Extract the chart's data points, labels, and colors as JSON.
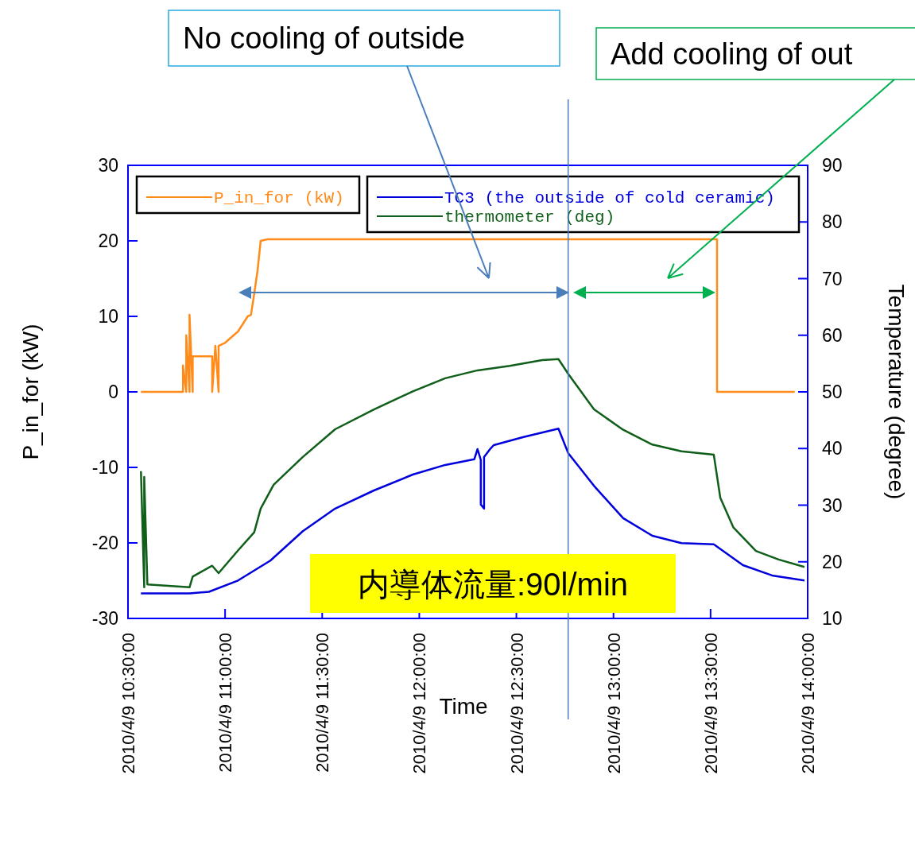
{
  "chart_data": {
    "type": "line",
    "xlabel": "Time",
    "ylabel": "P_in_for (kW)",
    "y2label": "Temperature (degree)",
    "xlim": [
      "2010-04-09T10:30",
      "2010-04-09T14:00"
    ],
    "xticks": [
      {
        "value": "2010-04-09T10:30",
        "label": "2010/4/9 10:30:00"
      },
      {
        "value": "2010-04-09T11:00",
        "label": "2010/4/9 11:00:00"
      },
      {
        "value": "2010-04-09T11:30",
        "label": "2010/4/9 11:30:00"
      },
      {
        "value": "2010-04-09T12:00",
        "label": "2010/4/9 12:00:00"
      },
      {
        "value": "2010-04-09T12:30",
        "label": "2010/4/9 12:30:00"
      },
      {
        "value": "2010-04-09T13:00",
        "label": "2010/4/9 13:00:00"
      },
      {
        "value": "2010-04-09T13:30",
        "label": "2010/4/9 13:30:00"
      },
      {
        "value": "2010-04-09T14:00",
        "label": "2010/4/9 14:00:00"
      }
    ],
    "ylim": [
      -30,
      30
    ],
    "yticks": [
      -30,
      -20,
      -10,
      0,
      10,
      20,
      30
    ],
    "y2lim": [
      10,
      90
    ],
    "y2ticks": [
      10,
      20,
      30,
      40,
      50,
      60,
      70,
      80,
      90
    ],
    "grid": false,
    "legend": "top",
    "marker": "none",
    "line_style": "solid",
    "series": [
      {
        "name": "P_in_for (kW)",
        "color": "#ff8c1a",
        "x": [
          "2010-04-09T10:34",
          "2010-04-09T10:47",
          "2010-04-09T10:47",
          "2010-04-09T10:48",
          "2010-04-09T10:48",
          "2010-04-09T10:49",
          "2010-04-09T10:49",
          "2010-04-09T10:50",
          "2010-04-09T10:50",
          "2010-04-09T10:56",
          "2010-04-09T10:56",
          "2010-04-09T10:57",
          "2010-04-09T10:58",
          "2010-04-09T10:58",
          "2010-04-09T11:00",
          "2010-04-09T11:04",
          "2010-04-09T11:07",
          "2010-04-09T11:08",
          "2010-04-09T11:09",
          "2010-04-09T11:10",
          "2010-04-09T11:11",
          "2010-04-09T11:13",
          "2010-04-09T13:32",
          "2010-04-09T13:32",
          "2010-04-09T13:56"
        ],
        "values": [
          0,
          0,
          3.5,
          0,
          7.5,
          0,
          10.2,
          0,
          4.7,
          4.7,
          0,
          6.1,
          0,
          6.1,
          6.5,
          8,
          10,
          10.2,
          13,
          16,
          20,
          20.2,
          20.2,
          0,
          0
        ]
      },
      {
        "name": "TC3 (the outside of cold ceramic)",
        "color": "#0000dd",
        "axis": "y2",
        "x": [
          "2010-04-09T10:34",
          "2010-04-09T10:49",
          "2010-04-09T10:55",
          "2010-04-09T11:04",
          "2010-04-09T11:14",
          "2010-04-09T11:24",
          "2010-04-09T11:34",
          "2010-04-09T11:46",
          "2010-04-09T11:58",
          "2010-04-09T12:08",
          "2010-04-09T12:17",
          "2010-04-09T12:18",
          "2010-04-09T12:19",
          "2010-04-09T12:19",
          "2010-04-09T12:20",
          "2010-04-09T12:20",
          "2010-04-09T12:22",
          "2010-04-09T12:23",
          "2010-04-09T12:32",
          "2010-04-09T12:43",
          "2010-04-09T12:46",
          "2010-04-09T12:54",
          "2010-04-09T13:03",
          "2010-04-09T13:12",
          "2010-04-09T13:21",
          "2010-04-09T13:31",
          "2010-04-09T13:40",
          "2010-04-09T13:49",
          "2010-04-09T13:59"
        ],
        "values": [
          14.4,
          14.4,
          14.7,
          16.7,
          20.2,
          25.4,
          29.4,
          32.6,
          35.4,
          37.1,
          38.1,
          39.9,
          38,
          30.1,
          29.4,
          38.5,
          40,
          40.6,
          42,
          43.5,
          39.2,
          33.4,
          27.7,
          24.6,
          23.3,
          23.1,
          19.4,
          17.6,
          16.7
        ]
      },
      {
        "name": "thermometer (deg)",
        "color": "#0f5f1a",
        "axis": "y2",
        "x": [
          "2010-04-09T10:34",
          "2010-04-09T10:35",
          "2010-04-09T10:35",
          "2010-04-09T10:36",
          "2010-04-09T10:49",
          "2010-04-09T10:50",
          "2010-04-09T10:56",
          "2010-04-09T10:58",
          "2010-04-09T11:04",
          "2010-04-09T11:09",
          "2010-04-09T11:11",
          "2010-04-09T11:15",
          "2010-04-09T11:24",
          "2010-04-09T11:34",
          "2010-04-09T11:46",
          "2010-04-09T11:58",
          "2010-04-09T12:08",
          "2010-04-09T12:18",
          "2010-04-09T12:28",
          "2010-04-09T12:38",
          "2010-04-09T12:43",
          "2010-04-09T12:46",
          "2010-04-09T12:54",
          "2010-04-09T13:03",
          "2010-04-09T13:12",
          "2010-04-09T13:21",
          "2010-04-09T13:31",
          "2010-04-09T13:33",
          "2010-04-09T13:37",
          "2010-04-09T13:44",
          "2010-04-09T13:51",
          "2010-04-09T13:59"
        ],
        "values": [
          36,
          15.5,
          35,
          16,
          15.5,
          17.4,
          19.3,
          18,
          22,
          25.2,
          29.4,
          33.6,
          38.5,
          43.4,
          46.9,
          50.1,
          52.4,
          53.8,
          54.6,
          55.6,
          55.8,
          53.2,
          46.9,
          43.3,
          40.7,
          39.5,
          38.9,
          31.3,
          26.1,
          21.9,
          20.4,
          19.1
        ]
      }
    ],
    "ref_lines": [
      {
        "axis": "x",
        "value": "2010-04-09T12:46",
        "color": "#4a7ebb"
      }
    ],
    "annotations": [
      "No cooling of outside",
      "Add cooling of out",
      "内導体流量:90l/min"
    ]
  }
}
